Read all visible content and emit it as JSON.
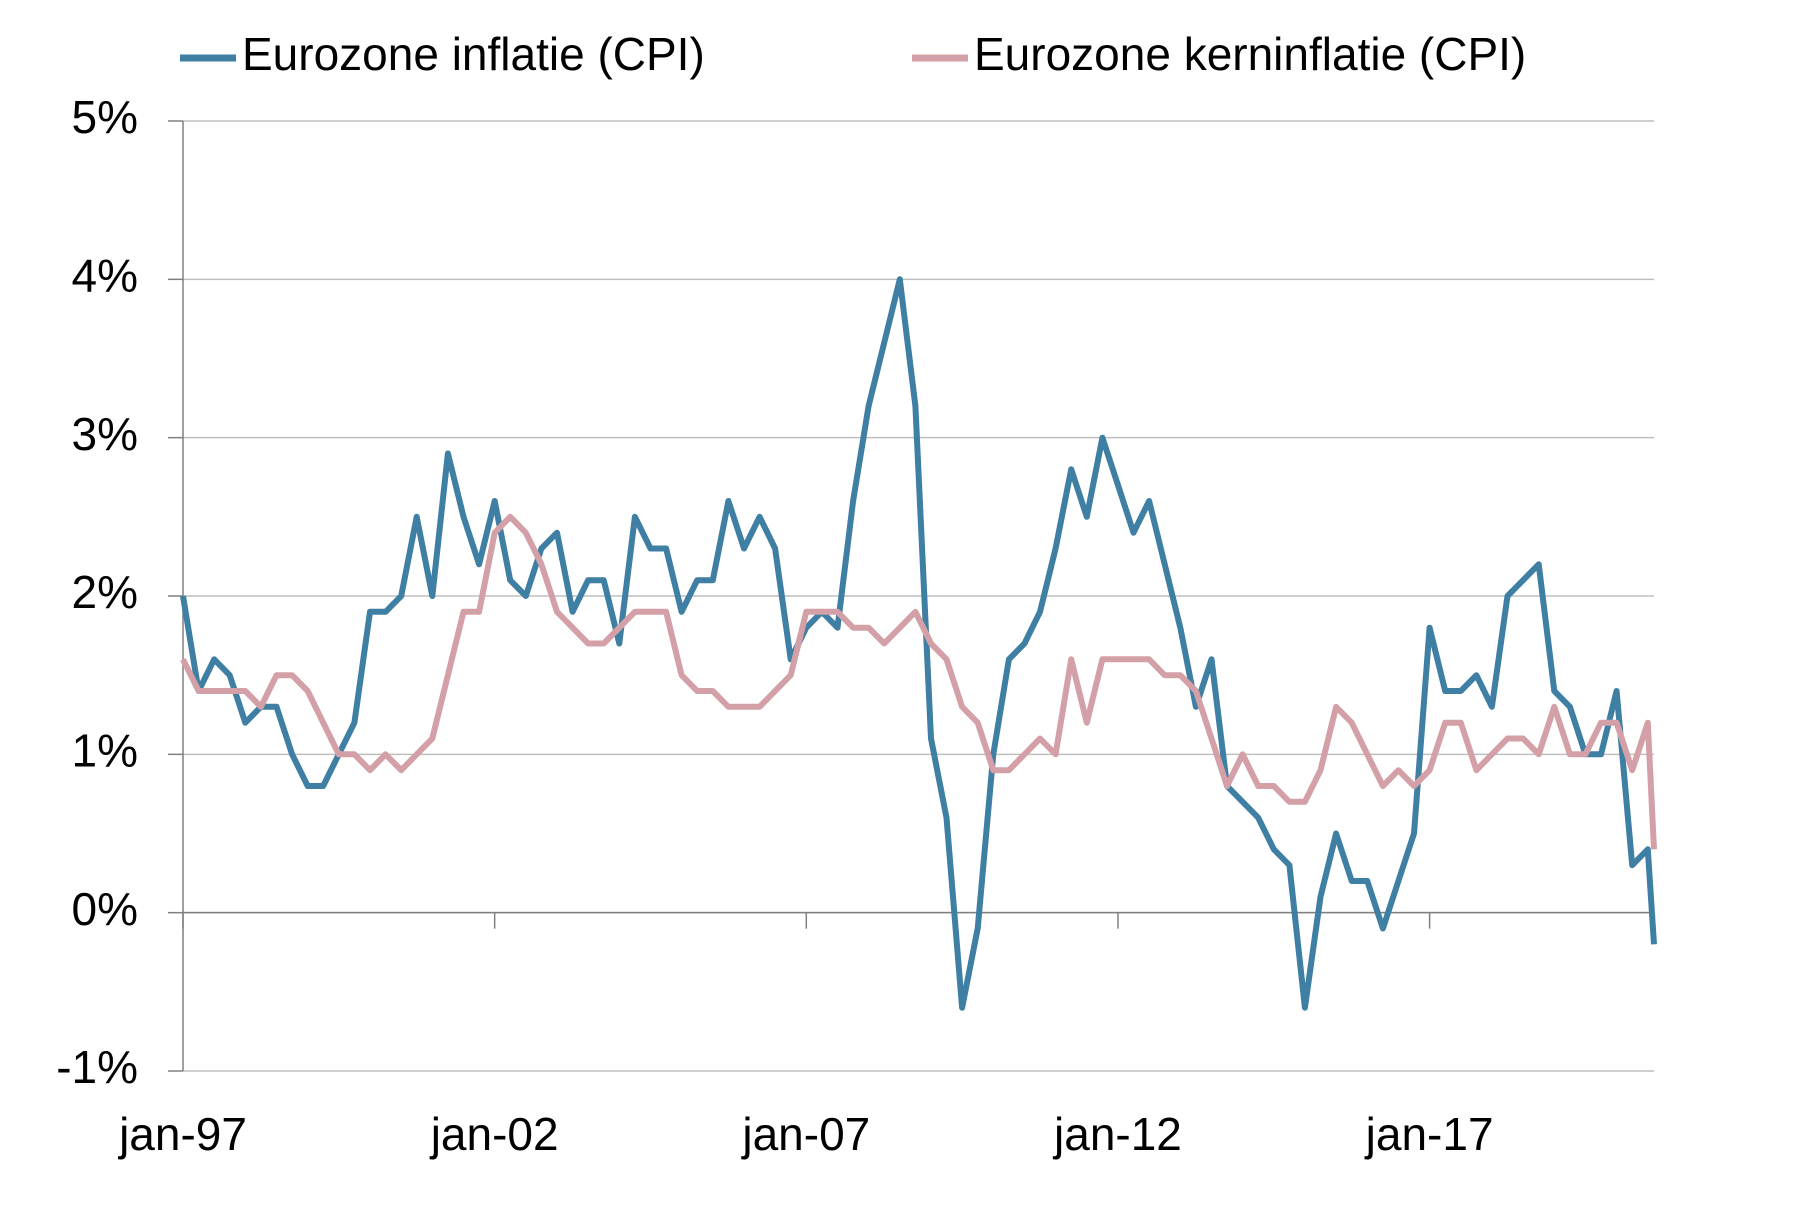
{
  "chart_data": {
    "type": "line",
    "x": [
      1997,
      1997.25,
      1997.5,
      1997.75,
      1998,
      1998.25,
      1998.5,
      1998.75,
      1999,
      1999.25,
      1999.5,
      1999.75,
      2000,
      2000.25,
      2000.5,
      2000.75,
      2001,
      2001.25,
      2001.5,
      2001.75,
      2002,
      2002.25,
      2002.5,
      2002.75,
      2003,
      2003.25,
      2003.5,
      2003.75,
      2004,
      2004.25,
      2004.5,
      2004.75,
      2005,
      2005.25,
      2005.5,
      2005.75,
      2006,
      2006.25,
      2006.5,
      2006.75,
      2007,
      2007.25,
      2007.5,
      2007.75,
      2008,
      2008.25,
      2008.5,
      2008.75,
      2009,
      2009.25,
      2009.5,
      2009.75,
      2010,
      2010.25,
      2010.5,
      2010.75,
      2011,
      2011.25,
      2011.5,
      2011.75,
      2012,
      2012.25,
      2012.5,
      2012.75,
      2013,
      2013.25,
      2013.5,
      2013.75,
      2014,
      2014.25,
      2014.5,
      2014.75,
      2015,
      2015.25,
      2015.5,
      2015.75,
      2016,
      2016.25,
      2016.5,
      2016.75,
      2017,
      2017.25,
      2017.5,
      2017.75,
      2018,
      2018.25,
      2018.5,
      2018.75,
      2019,
      2019.25,
      2019.5,
      2019.75,
      2020,
      2020.25,
      2020.5,
      2020.6
    ],
    "series": [
      {
        "name": "Eurozone inflatie (CPI)",
        "color": "#3f7fa3",
        "values": [
          2.0,
          1.4,
          1.6,
          1.5,
          1.2,
          1.3,
          1.3,
          1.0,
          0.8,
          0.8,
          1.0,
          1.2,
          1.9,
          1.9,
          2.0,
          2.5,
          2.0,
          2.9,
          2.5,
          2.2,
          2.6,
          2.1,
          2.0,
          2.3,
          2.4,
          1.9,
          2.1,
          2.1,
          1.7,
          2.5,
          2.3,
          2.3,
          1.9,
          2.1,
          2.1,
          2.6,
          2.3,
          2.5,
          2.3,
          1.6,
          1.8,
          1.9,
          1.8,
          2.6,
          3.2,
          3.6,
          4.0,
          3.2,
          1.1,
          0.6,
          -0.6,
          -0.1,
          1.0,
          1.6,
          1.7,
          1.9,
          2.3,
          2.8,
          2.5,
          3.0,
          2.7,
          2.4,
          2.6,
          2.2,
          1.8,
          1.3,
          1.6,
          0.8,
          0.7,
          0.6,
          0.4,
          0.3,
          -0.6,
          0.1,
          0.5,
          0.2,
          0.2,
          -0.1,
          0.2,
          0.5,
          1.8,
          1.4,
          1.4,
          1.5,
          1.3,
          2.0,
          2.1,
          2.2,
          1.4,
          1.3,
          1.0,
          1.0,
          1.4,
          0.3,
          0.4,
          -0.2
        ]
      },
      {
        "name": "Eurozone kerninflatie (CPI)",
        "color": "#d4a0a8",
        "values": [
          1.6,
          1.4,
          1.4,
          1.4,
          1.4,
          1.3,
          1.5,
          1.5,
          1.4,
          1.2,
          1.0,
          1.0,
          0.9,
          1.0,
          0.9,
          1.0,
          1.1,
          1.5,
          1.9,
          1.9,
          2.4,
          2.5,
          2.4,
          2.2,
          1.9,
          1.8,
          1.7,
          1.7,
          1.8,
          1.9,
          1.9,
          1.9,
          1.5,
          1.4,
          1.4,
          1.3,
          1.3,
          1.3,
          1.4,
          1.5,
          1.9,
          1.9,
          1.9,
          1.8,
          1.8,
          1.7,
          1.8,
          1.9,
          1.7,
          1.6,
          1.3,
          1.2,
          0.9,
          0.9,
          1.0,
          1.1,
          1.0,
          1.6,
          1.2,
          1.6,
          1.6,
          1.6,
          1.6,
          1.5,
          1.5,
          1.4,
          1.1,
          0.8,
          1.0,
          0.8,
          0.8,
          0.7,
          0.7,
          0.9,
          1.3,
          1.2,
          1.0,
          0.8,
          0.9,
          0.8,
          0.9,
          1.2,
          1.2,
          0.9,
          1.0,
          1.1,
          1.1,
          1.0,
          1.3,
          1.0,
          1.0,
          1.2,
          1.2,
          0.9,
          1.2,
          0.4
        ]
      }
    ],
    "xlim": [
      1997,
      2020.6
    ],
    "xticks": [
      {
        "value": 1997,
        "label": "jan-97"
      },
      {
        "value": 2002,
        "label": "jan-02"
      },
      {
        "value": 2007,
        "label": "jan-07"
      },
      {
        "value": 2012,
        "label": "jan-12"
      },
      {
        "value": 2017,
        "label": "jan-17"
      }
    ],
    "ylim": [
      -1,
      5
    ],
    "yticks": [
      {
        "value": -1,
        "label": "-1%"
      },
      {
        "value": 0,
        "label": "0%"
      },
      {
        "value": 1,
        "label": "1%"
      },
      {
        "value": 2,
        "label": "2%"
      },
      {
        "value": 3,
        "label": "3%"
      },
      {
        "value": 4,
        "label": "4%"
      },
      {
        "value": 5,
        "label": "5%"
      }
    ],
    "grid": true,
    "legend": "top"
  }
}
